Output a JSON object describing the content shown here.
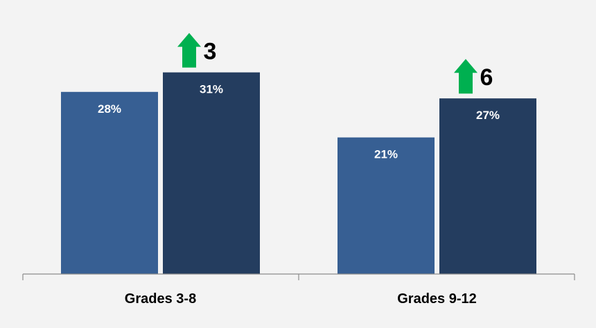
{
  "chart_data": {
    "type": "bar",
    "categories": [
      "Grades 3-8",
      "Grades 9-12"
    ],
    "series": [
      {
        "values": [
          28,
          21
        ],
        "labels": [
          "28%",
          "21%"
        ],
        "color": "#375f93"
      },
      {
        "values": [
          31,
          27
        ],
        "labels": [
          "31%",
          "27%"
        ],
        "color": "#243d5f"
      }
    ],
    "changes": [
      {
        "label": "3",
        "direction": "up",
        "color": "#00b050"
      },
      {
        "label": "6",
        "direction": "up",
        "color": "#00b050"
      }
    ],
    "title": "",
    "xlabel": "",
    "ylabel": "",
    "ylim": [
      0,
      37
    ],
    "grid": false,
    "legend": "none",
    "axis_color": "#8c8c8c",
    "background": "#f3f3f3"
  }
}
